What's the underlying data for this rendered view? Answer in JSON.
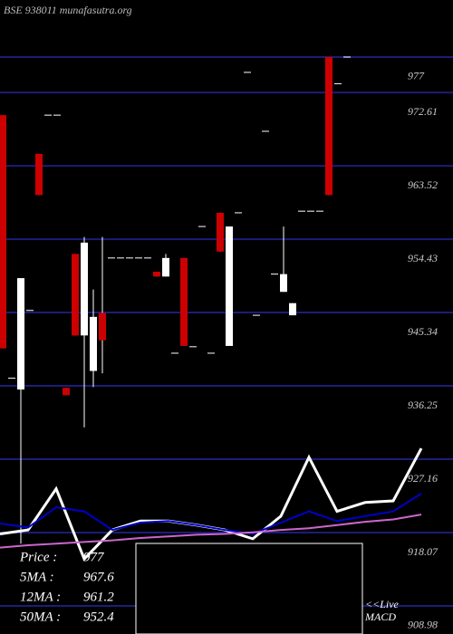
{
  "chart_data": [
    {
      "type": "candlestick",
      "title": "BSE 938011 munafasutra.org",
      "ylim": [
        905.5,
        984.07
      ],
      "yticks": [
        977,
        972.61,
        963.52,
        954.43,
        945.34,
        936.25,
        927.16,
        918.07,
        908.98
      ],
      "grid": true,
      "up_color": "#ffffff",
      "down_color": "#cc0000",
      "open": [
        969.8,
        937.2,
        935.8,
        945.6,
        965.0,
        969.8,
        969.8,
        936.0,
        952.6,
        942.5,
        938.1,
        945.3,
        952.1,
        952.1,
        952.1,
        952.1,
        952.1,
        950.4,
        949.8,
        940.3,
        952.1,
        941.1,
        956.0,
        940.3,
        957.7,
        941.2,
        957.7,
        975.1,
        945.0,
        967.8,
        950.1,
        947.9,
        945.0,
        957.9,
        957.9,
        957.9,
        977,
        973.7,
        977
      ],
      "high": [
        969.8,
        937.2,
        949.6,
        945.6,
        965.0,
        969.8,
        969.8,
        936.0,
        952.6,
        954.7,
        948.2,
        954.7,
        952.1,
        952.1,
        952.1,
        952.1,
        952.1,
        950.4,
        952.6,
        940.3,
        952.1,
        941.1,
        956.0,
        940.3,
        957.7,
        956.0,
        957.7,
        975.1,
        945.0,
        967.8,
        950.1,
        956.0,
        946.5,
        957.9,
        957.9,
        957.9,
        977,
        973.7,
        977
      ],
      "low": [
        940.9,
        937.2,
        916.7,
        945.6,
        959.9,
        969.8,
        969.8,
        935.1,
        942.5,
        931.1,
        936.1,
        937.8,
        952.1,
        952.1,
        952.1,
        952.1,
        952.1,
        949.8,
        949.8,
        940.3,
        941.2,
        941.1,
        956.0,
        940.3,
        952.9,
        941.2,
        957.7,
        975.1,
        945.0,
        967.8,
        950.1,
        947.9,
        945.0,
        957.9,
        957.9,
        957.9,
        959.9,
        973.7,
        977
      ],
      "close": [
        940.9,
        937.2,
        949.6,
        945.6,
        959.9,
        969.8,
        969.8,
        935.1,
        942.5,
        954.0,
        944.8,
        941.9,
        952.1,
        952.1,
        952.1,
        952.1,
        952.1,
        949.8,
        952.1,
        940.3,
        941.2,
        941.1,
        956.0,
        940.3,
        952.9,
        956.0,
        957.7,
        975.1,
        945.0,
        967.8,
        950.1,
        950.1,
        946.5,
        957.9,
        957.9,
        957.9,
        959.9,
        973.7,
        977
      ],
      "legend": [
        {
          "label": "Price  :",
          "value": 977
        },
        {
          "label": "5MA :",
          "value": 967.6
        },
        {
          "label": "12MA :",
          "value": 961.2
        },
        {
          "label": "50MA :",
          "value": 952.4
        }
      ],
      "macd_label": [
        "<<Live",
        "MACD"
      ]
    },
    {
      "type": "line",
      "ylim": [
        905.5,
        984.07
      ],
      "categories": [
        null,
        null,
        null,
        null,
        null,
        null,
        null,
        null,
        null,
        null,
        null,
        null,
        null,
        null,
        null,
        null
      ],
      "series": [
        {
          "color": "#ffffff",
          "values": [
            917.9,
            918.4,
            923.5,
            914.8,
            918.4,
            919.5,
            919.5,
            919.0,
            918.4,
            917.3,
            920.1,
            927.4,
            920.7,
            921.8,
            922.0,
            928.5
          ]
        },
        {
          "color": "#0000cc",
          "values": [
            919.2,
            918.7,
            921.2,
            920.7,
            918.4,
            919.3,
            919.5,
            919.0,
            918.4,
            917.9,
            919.3,
            920.7,
            919.5,
            920.1,
            920.7,
            922.9
          ]
        },
        {
          "color": "#cc66cc",
          "values": [
            916.2,
            916.5,
            916.7,
            916.9,
            917.1,
            917.4,
            917.6,
            917.8,
            917.9,
            918.1,
            918.4,
            918.6,
            919.0,
            919.4,
            919.7,
            920.3
          ]
        }
      ]
    }
  ]
}
